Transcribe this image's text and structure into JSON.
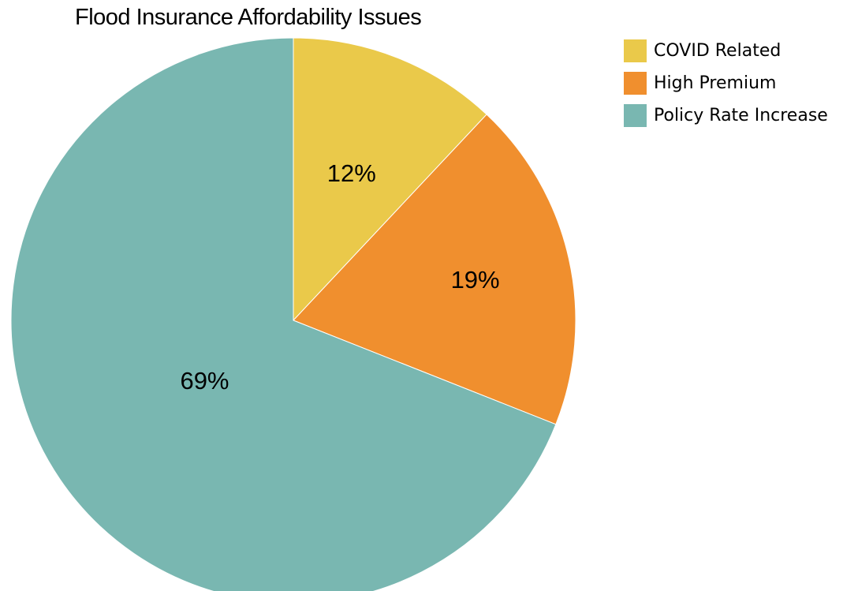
{
  "chart_data": {
    "type": "pie",
    "title": "Flood Insurance Affordability Issues",
    "categories": [
      "COVID Related",
      "High Premium",
      "Policy Rate Increase"
    ],
    "values": [
      12,
      19,
      69
    ],
    "data_labels": [
      "12%",
      "19%",
      "69%"
    ],
    "colors": [
      "#eac94a",
      "#f08f2e",
      "#79b7b1"
    ],
    "start_angle": "12 o'clock",
    "direction": "clockwise",
    "legend": {
      "placement": "top-right",
      "entries": [
        "COVID Related",
        "High Premium",
        "Policy Rate Increase"
      ]
    }
  }
}
